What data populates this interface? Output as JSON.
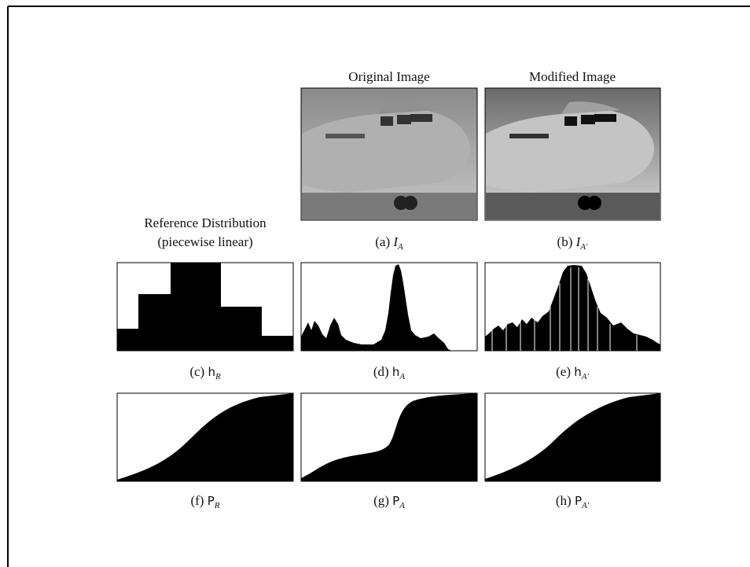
{
  "header": {
    "original": "Original Image",
    "modified": "Modified Image"
  },
  "reference": {
    "title": "Reference Distribution",
    "subtitle": "(piecewise linear)"
  },
  "captions": [
    {
      "label": "(a)",
      "symbol": "I",
      "subscript": "A"
    },
    {
      "label": "(b)",
      "symbol": "I",
      "subscript": "A′"
    },
    {
      "label": "(c)",
      "symbol": "h",
      "subscript": "R"
    },
    {
      "label": "(d)",
      "symbol": "h",
      "subscript": "A"
    },
    {
      "label": "(e)",
      "symbol": "h",
      "subscript": "A′"
    },
    {
      "label": "(f)",
      "symbol": "P",
      "subscript": "R"
    },
    {
      "label": "(g)",
      "symbol": "P",
      "subscript": "A"
    },
    {
      "label": "(h)",
      "symbol": "P",
      "subscript": "A′"
    }
  ]
}
